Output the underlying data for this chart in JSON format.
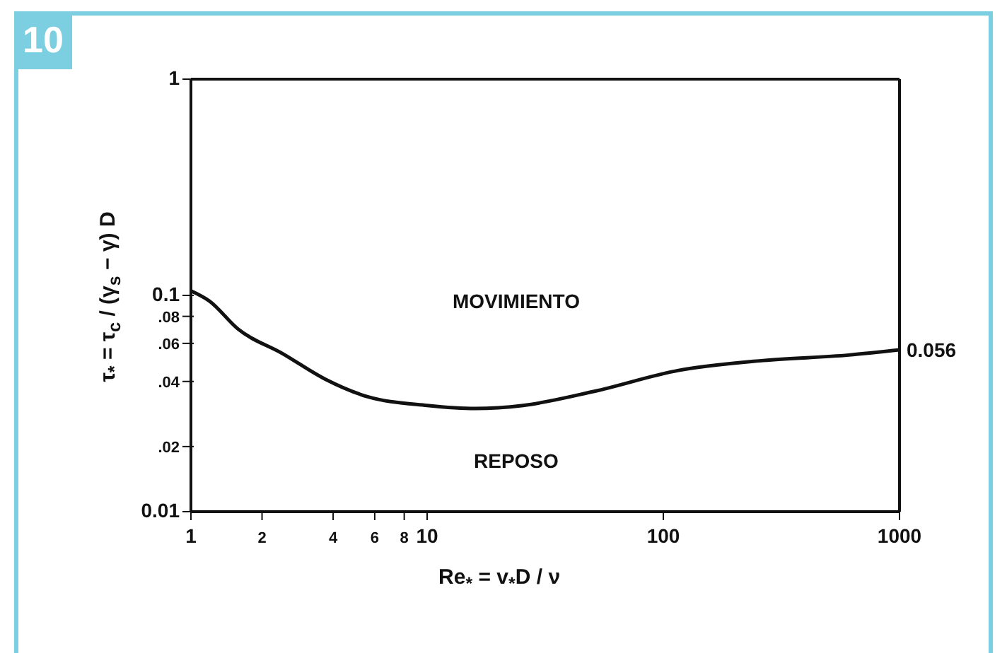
{
  "chart_data": {
    "type": "line",
    "title": "10",
    "xlabel": "Re$_{*}$ = v$_{*}$D / ν",
    "ylabel": "τ$_{*}$ = τ$_{c}$ / (γ$_{s}$ − γ) D",
    "x": [
      1,
      1.2,
      1.58,
      2.45,
      3.7,
      5.6,
      10,
      16,
      25.5,
      51,
      116,
      265,
      610,
      1000
    ],
    "series": [
      {
        "color": "#111111",
        "values": [
          0.105,
          0.094,
          0.07,
          0.0537,
          0.041,
          0.034,
          0.031,
          0.03,
          0.031,
          0.036,
          0.045,
          0.05,
          0.053,
          0.056
        ]
      }
    ],
    "log": "xy",
    "xlim": [
      1,
      1000
    ],
    "ylim": [
      0.01,
      1
    ],
    "xticks": [
      1,
      {
        "value": 2,
        "label": "2"
      },
      {
        "value": 4,
        "label": "4"
      },
      {
        "value": 6,
        "label": "6"
      },
      {
        "value": 8,
        "label": "8"
      },
      10,
      100,
      1000
    ],
    "yticks": [
      0.01,
      {
        "value": 0.02,
        "label": ".02"
      },
      {
        "value": 0.04,
        "label": ".04"
      },
      {
        "value": 0.06,
        "label": ".06"
      },
      {
        "value": 0.08,
        "label": ".08"
      },
      0.1,
      1
    ],
    "annotations": [
      "MOVIMIENTO",
      "REPOSO",
      {
        "text": "0.056",
        "x": 1000,
        "y": 0.056
      }
    ],
    "grid": false,
    "legend": false,
    "marker": "none",
    "line_style": "solid"
  }
}
